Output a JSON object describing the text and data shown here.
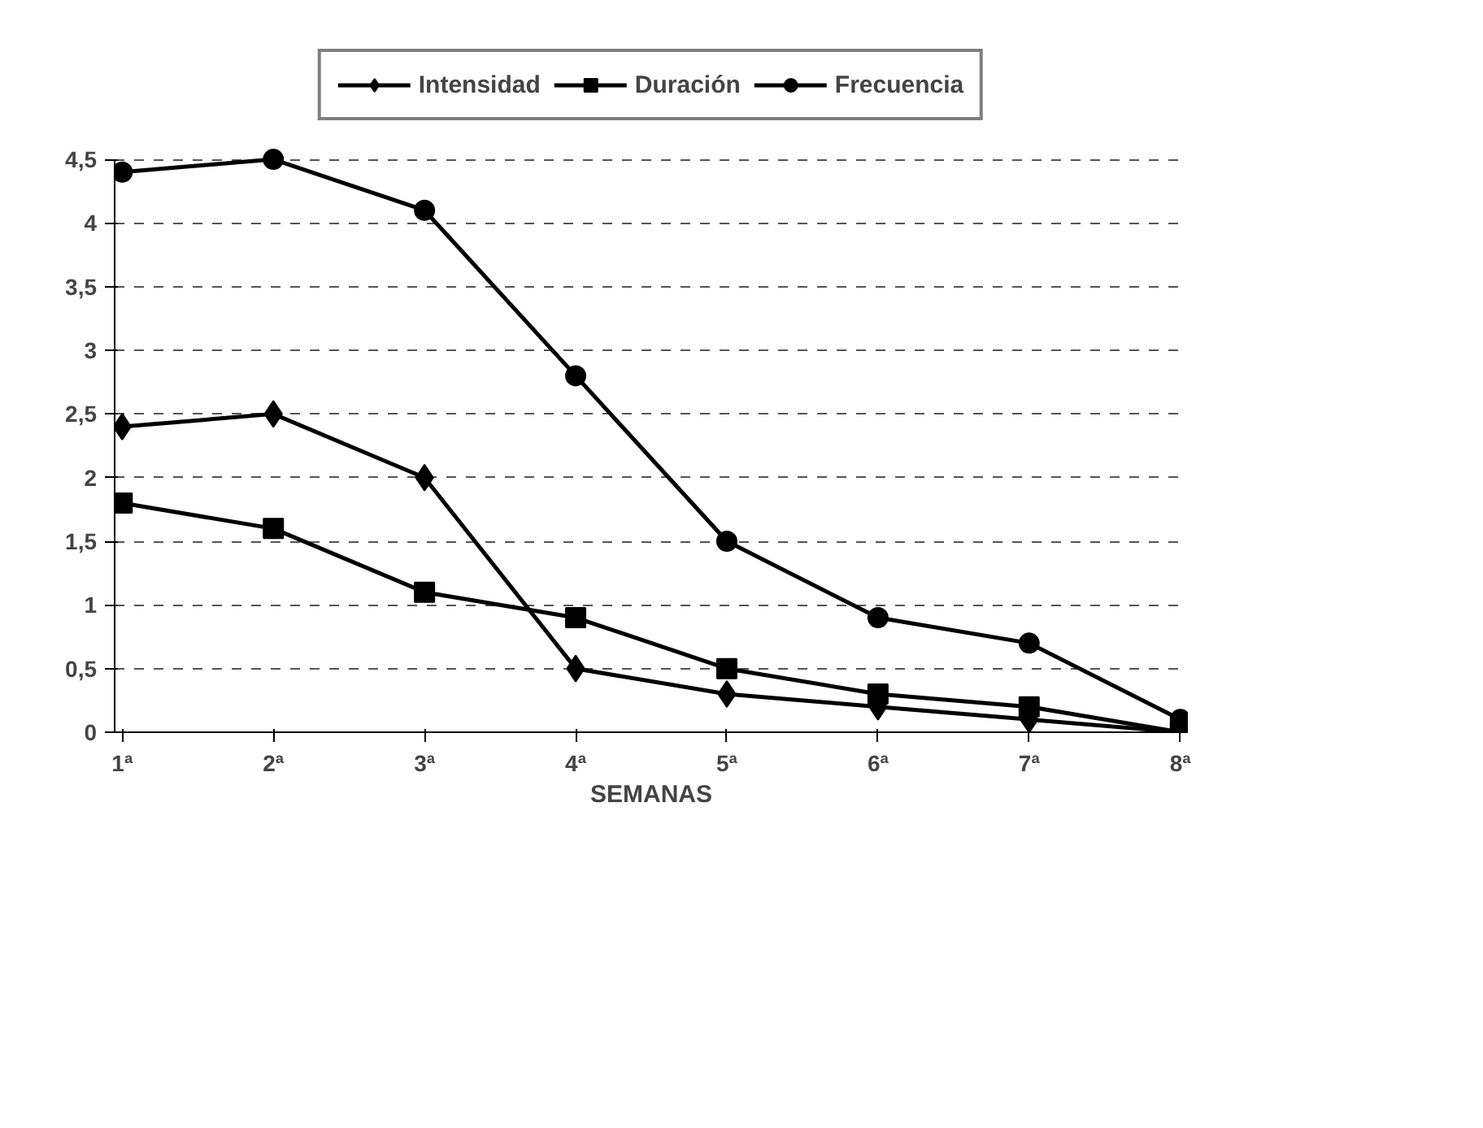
{
  "chart_data": {
    "type": "line",
    "xlabel": "SEMANAS",
    "categories": [
      "1ª",
      "2ª",
      "3ª",
      "4ª",
      "5ª",
      "6ª",
      "7ª",
      "8ª"
    ],
    "series": [
      {
        "name": "Intensidad",
        "color": "#000000",
        "marker": "diamond",
        "values": [
          2.4,
          2.5,
          2,
          0.5,
          0.3,
          0.2,
          0.1,
          0
        ]
      },
      {
        "name": "Duración",
        "color": "#000000",
        "marker": "square",
        "values": [
          1.8,
          1.6,
          1.1,
          0.9,
          0.5,
          0.3,
          0.2,
          0
        ]
      },
      {
        "name": "Frecuencia",
        "color": "#000000",
        "marker": "circle",
        "values": [
          4.4,
          4.5,
          4.1,
          2.8,
          1.5,
          0.9,
          0.7,
          0.1
        ]
      }
    ],
    "ylim": [
      0,
      4.5
    ],
    "yticks": [
      0,
      {
        "value": 0.5,
        "label": "0,5"
      },
      1,
      {
        "value": 1.5,
        "label": "1,5"
      },
      2,
      {
        "value": 2.5,
        "label": "2,5"
      },
      3,
      {
        "value": 3.5,
        "label": "3,5"
      },
      4,
      {
        "value": 4.5,
        "label": "4,5"
      }
    ],
    "grid": "y",
    "legend": "top",
    "line_style": "solid"
  }
}
